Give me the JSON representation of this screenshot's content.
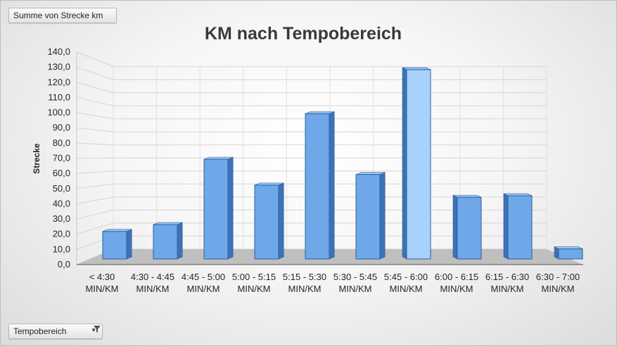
{
  "buttons": {
    "value_field": "Summe von Strecke km",
    "axis_field": "Tempobereich"
  },
  "icons": {
    "filter": "filter-icon",
    "dropdown": "dropdown-arrow-icon"
  },
  "colors": {
    "bar_front": "#6fa8e8",
    "bar_front_top": "#8cbcf0",
    "bar_side": "#3d72b8",
    "bar_top": "#9cc6f2",
    "bar_edge": "#2b5f9e",
    "highlight_bar": "#a8d2fb"
  },
  "chart_data": {
    "type": "bar",
    "title": "KM nach Tempobereich",
    "xlabel": "",
    "ylabel": "Strecke",
    "ylim": [
      0,
      140
    ],
    "yticks": [
      "0,0",
      "10,0",
      "20,0",
      "30,0",
      "40,0",
      "50,0",
      "60,0",
      "70,0",
      "80,0",
      "90,0",
      "100,0",
      "110,0",
      "120,0",
      "130,0",
      "140,0"
    ],
    "grid": true,
    "style": "3d-clustered-column",
    "categories": [
      [
        "< 4:30",
        "MIN/KM"
      ],
      [
        "4:30 - 4:45",
        "MIN/KM"
      ],
      [
        "4:45 - 5:00",
        "MIN/KM"
      ],
      [
        "5:00 - 5:15",
        "MIN/KM"
      ],
      [
        "5:15 - 5:30",
        "MIN/KM"
      ],
      [
        "5:30 - 5:45",
        "MIN/KM"
      ],
      [
        "5:45 - 6:00",
        "MIN/KM"
      ],
      [
        "6:00 - 6:15",
        "MIN/KM"
      ],
      [
        "6:15 - 6:30",
        "MIN/KM"
      ],
      [
        "6:30 - 7:00",
        "MIN/KM"
      ]
    ],
    "values": [
      25.5,
      30,
      73,
      56,
      103,
      63,
      132,
      48,
      49,
      14
    ]
  }
}
